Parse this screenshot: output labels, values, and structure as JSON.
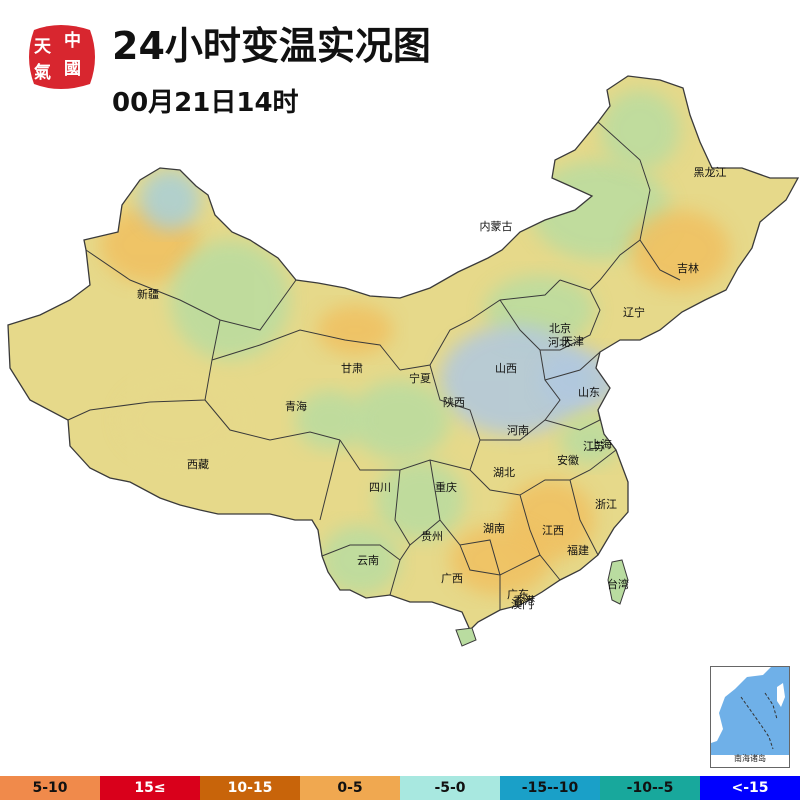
{
  "header": {
    "title": "24小时变温实况图",
    "subtitle": "00月21日14时",
    "logo_chars": [
      "中",
      "國",
      "天",
      "氣"
    ]
  },
  "colors": {
    "base": "#e6d98a",
    "warm": "#f0c060",
    "cool": "#b9dca0",
    "cold": "#a8cfd8",
    "colder": "#b0c8e0",
    "border": "#3a3a3a",
    "sea": "#6fb0e8"
  },
  "provinces": [
    {
      "name": "新疆"
    },
    {
      "name": "西藏"
    },
    {
      "name": "青海"
    },
    {
      "name": "甘肃"
    },
    {
      "name": "内蒙古"
    },
    {
      "name": "黑龙江"
    },
    {
      "name": "吉林"
    },
    {
      "name": "辽宁"
    },
    {
      "name": "北京"
    },
    {
      "name": "天津"
    },
    {
      "name": "河北"
    },
    {
      "name": "山西"
    },
    {
      "name": "宁夏"
    },
    {
      "name": "陕西"
    },
    {
      "name": "山东"
    },
    {
      "name": "河南"
    },
    {
      "name": "江苏"
    },
    {
      "name": "安徽"
    },
    {
      "name": "湖北"
    },
    {
      "name": "四川"
    },
    {
      "name": "重庆"
    },
    {
      "name": "浙江"
    },
    {
      "name": "上海"
    },
    {
      "name": "贵州"
    },
    {
      "name": "湖南"
    },
    {
      "name": "江西"
    },
    {
      "name": "福建"
    },
    {
      "name": "云南"
    },
    {
      "name": "广西"
    },
    {
      "name": "广东"
    },
    {
      "name": "台湾"
    },
    {
      "name": "香港"
    },
    {
      "name": "澳门"
    }
  ],
  "inset": {
    "label": "南海诸岛"
  },
  "legend": [
    {
      "label": "5-10",
      "color": "#f08a4b",
      "text_color": "#111111"
    },
    {
      "label": "15≤",
      "color": "#d9001b",
      "text_color": "#ffffff"
    },
    {
      "label": "10-15",
      "color": "#c8640a",
      "text_color": "#ffffff"
    },
    {
      "label": "0-5",
      "color": "#f0a850",
      "text_color": "#111111"
    },
    {
      "label": "-5-0",
      "color": "#a8e8e0",
      "text_color": "#111111"
    },
    {
      "label": "-15--10",
      "color": "#1aa0c8",
      "text_color": "#111111"
    },
    {
      "label": "-10--5",
      "color": "#18a89c",
      "text_color": "#111111"
    },
    {
      "label": "<-15",
      "color": "#0000ff",
      "text_color": "#ffffff"
    }
  ]
}
